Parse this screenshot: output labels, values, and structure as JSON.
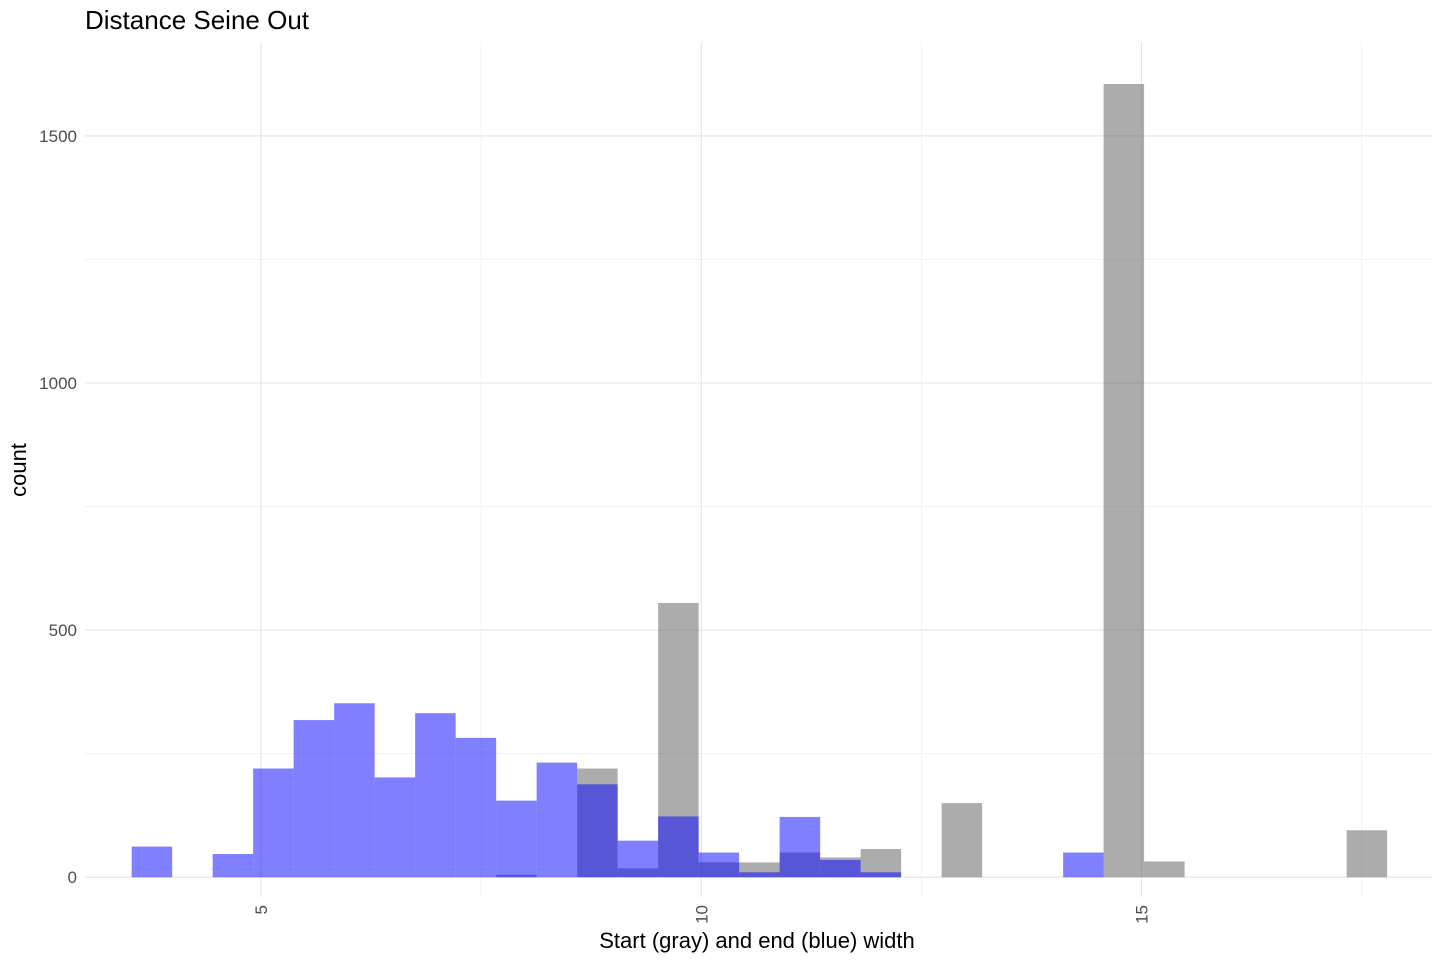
{
  "chart_data": {
    "type": "bar",
    "title": "Distance Seine Out",
    "xlabel": "Start (gray) and end (blue) width",
    "ylabel": "count",
    "xlim": [
      3.0,
      18.3
    ],
    "ylim": [
      -40,
      1690
    ],
    "grid": true,
    "bin_width": 0.46,
    "x_ticks": [
      {
        "value": 5,
        "label": "5"
      },
      {
        "value": 10,
        "label": "10"
      },
      {
        "value": 15,
        "label": "15"
      }
    ],
    "x_minor_ticks": [
      7.5,
      12.5,
      17.5
    ],
    "y_ticks": [
      {
        "value": 0,
        "label": "0"
      },
      {
        "value": 500,
        "label": "500"
      },
      {
        "value": 1000,
        "label": "1000"
      },
      {
        "value": 1500,
        "label": "1500"
      }
    ],
    "y_minor_ticks": [
      250,
      750,
      1250
    ],
    "series": [
      {
        "color": "#595959",
        "opacity": 0.5,
        "bins": [
          {
            "x": 7.9,
            "count": 5
          },
          {
            "x": 8.82,
            "count": 220
          },
          {
            "x": 9.28,
            "count": 18
          },
          {
            "x": 9.74,
            "count": 555
          },
          {
            "x": 10.2,
            "count": 30
          },
          {
            "x": 10.66,
            "count": 30
          },
          {
            "x": 11.12,
            "count": 50
          },
          {
            "x": 11.58,
            "count": 40
          },
          {
            "x": 12.04,
            "count": 57
          },
          {
            "x": 12.96,
            "count": 150
          },
          {
            "x": 14.8,
            "count": 1605
          },
          {
            "x": 15.26,
            "count": 32
          },
          {
            "x": 17.56,
            "count": 95
          }
        ]
      },
      {
        "color": "#0000ff",
        "opacity": 0.5,
        "bins": [
          {
            "x": 3.76,
            "count": 62
          },
          {
            "x": 4.68,
            "count": 47
          },
          {
            "x": 5.14,
            "count": 220
          },
          {
            "x": 5.6,
            "count": 318
          },
          {
            "x": 6.06,
            "count": 352
          },
          {
            "x": 6.52,
            "count": 202
          },
          {
            "x": 6.98,
            "count": 332
          },
          {
            "x": 7.44,
            "count": 282
          },
          {
            "x": 7.9,
            "count": 155
          },
          {
            "x": 8.36,
            "count": 232
          },
          {
            "x": 8.82,
            "count": 188
          },
          {
            "x": 9.28,
            "count": 74
          },
          {
            "x": 9.74,
            "count": 123
          },
          {
            "x": 10.2,
            "count": 50
          },
          {
            "x": 10.66,
            "count": 10
          },
          {
            "x": 11.12,
            "count": 122
          },
          {
            "x": 11.58,
            "count": 35
          },
          {
            "x": 12.04,
            "count": 10
          },
          {
            "x": 14.34,
            "count": 50
          }
        ]
      }
    ]
  }
}
